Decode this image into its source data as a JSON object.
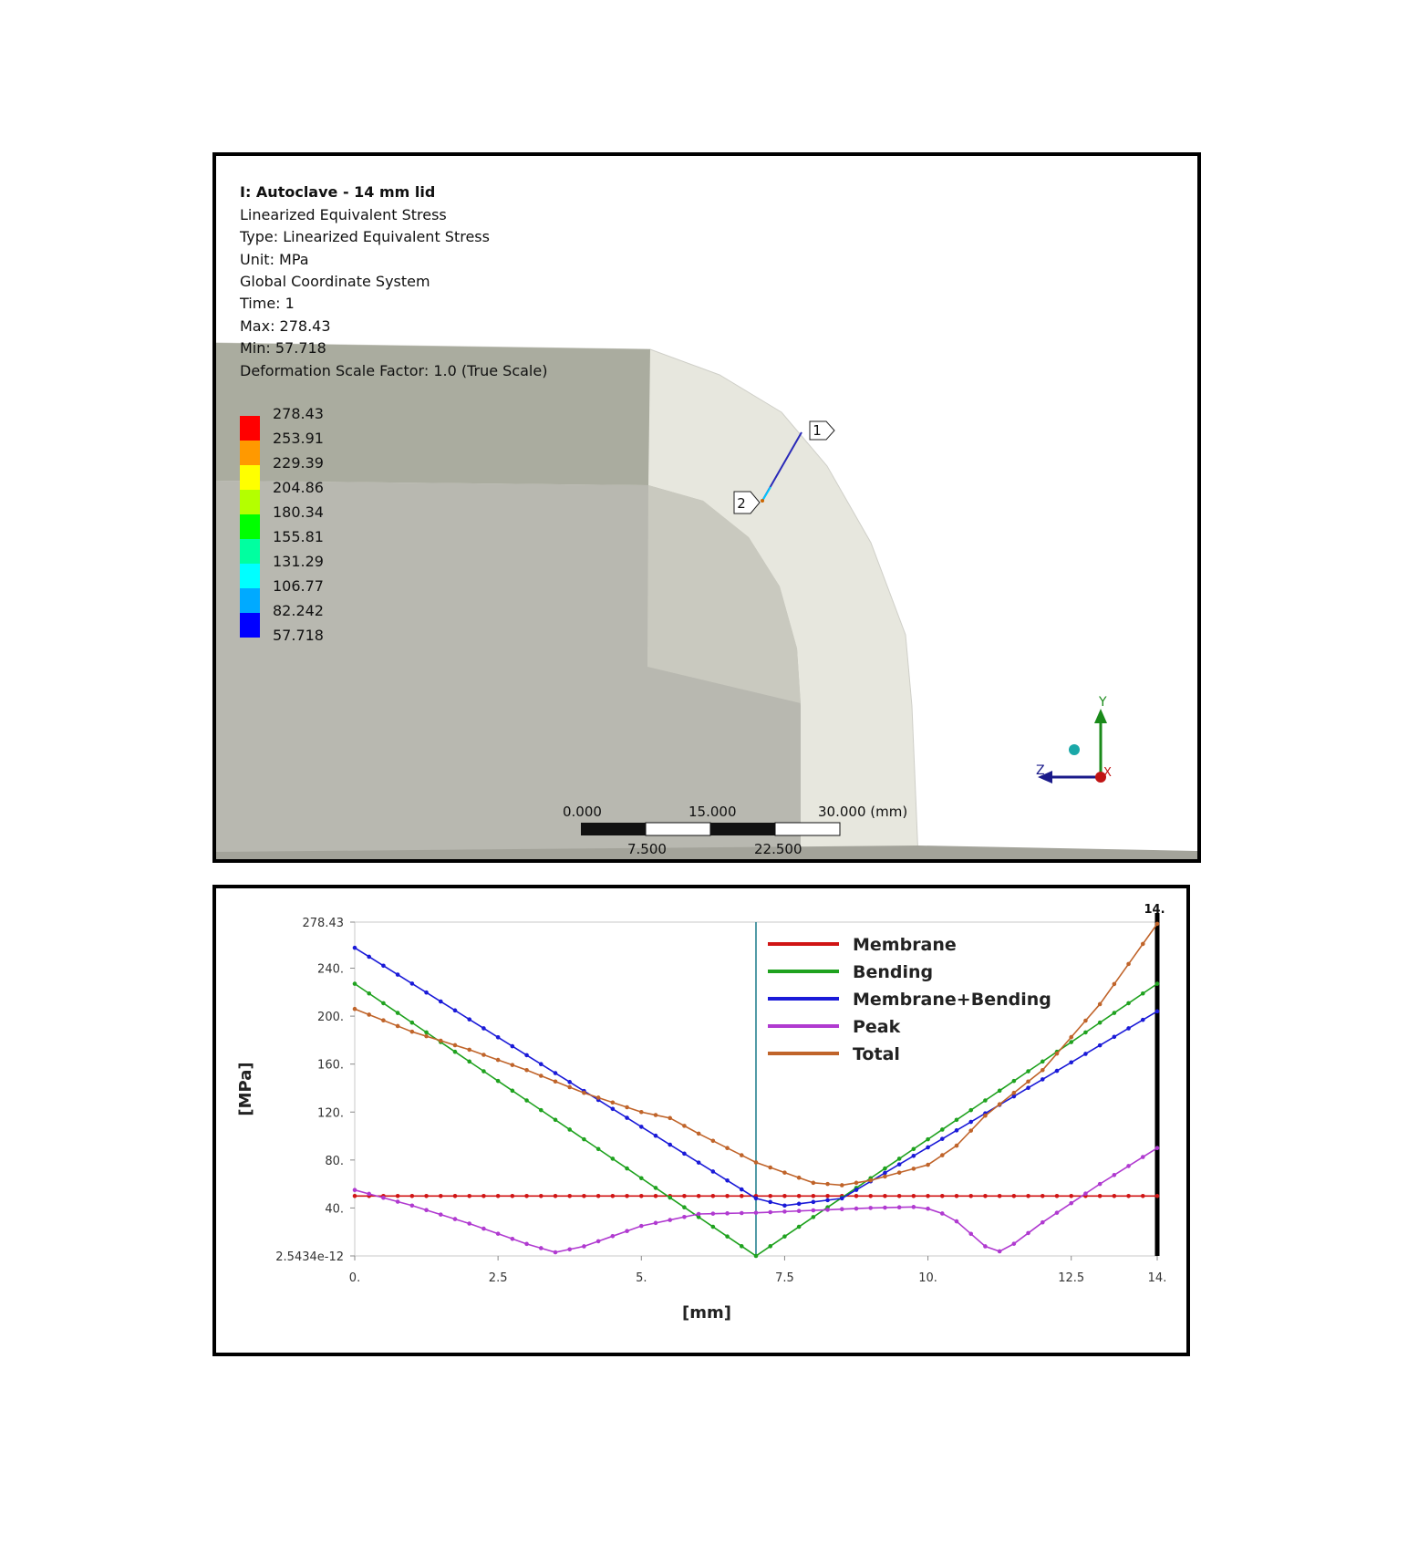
{
  "fea_view": {
    "title": "I: Autoclave - 14 mm lid",
    "lines": [
      "Linearized Equivalent Stress",
      "Type: Linearized Equivalent Stress",
      "Unit: MPa",
      "Global Coordinate System",
      "Time: 1",
      "Max: 278.43",
      "Min: 57.718",
      "Deformation Scale Factor: 1.0 (True Scale)"
    ],
    "legend": {
      "values": [
        "278.43",
        "253.91",
        "229.39",
        "204.86",
        "180.34",
        "155.81",
        "131.29",
        "106.77",
        "82.242",
        "57.718"
      ],
      "colors": [
        "#ff0000",
        "#ff9900",
        "#ffff00",
        "#b4ff00",
        "#00ff00",
        "#00ffa0",
        "#00ffff",
        "#00aaff",
        "#0000ff"
      ]
    },
    "path_markers": {
      "start": "1",
      "end": "2"
    },
    "scale_bar": {
      "top_labels": [
        "0.000",
        "15.000",
        "30.000 (mm)"
      ],
      "bottom_labels": [
        "7.500",
        "22.500"
      ]
    },
    "triad": {
      "y": "Y",
      "z": "Z",
      "x": "X"
    }
  },
  "chart_data": {
    "type": "line",
    "xlabel": "[mm]",
    "ylabel": "[MPa]",
    "xlim": [
      0,
      14
    ],
    "ylim": [
      2.5434e-12,
      278.43
    ],
    "x_ticks": [
      "0.",
      "2.5",
      "5.",
      "7.5",
      "10.",
      "12.5",
      "14."
    ],
    "y_ticks": [
      "278.43",
      "240.",
      "200.",
      "160.",
      "120.",
      "80.",
      "40.",
      "2.5434e-12"
    ],
    "marker_label": "14.",
    "cursor_x": 7.0,
    "grid": false,
    "legend_position": "top-center",
    "series": [
      {
        "name": "Membrane",
        "color": "#d01414",
        "x": [
          0,
          14
        ],
        "y": [
          50,
          50
        ]
      },
      {
        "name": "Bending",
        "color": "#1fa21f",
        "x": [
          0,
          7,
          14
        ],
        "y": [
          227,
          0,
          227
        ]
      },
      {
        "name": "Membrane+Bending",
        "color": "#1a1ad8",
        "x": [
          0,
          7,
          7.5,
          8.5,
          14
        ],
        "y": [
          257,
          48,
          42,
          48,
          204
        ]
      },
      {
        "name": "Peak",
        "color": "#b03ad0",
        "x": [
          0,
          1,
          2,
          3,
          3.5,
          4,
          5,
          6,
          7,
          8,
          9,
          9.9,
          10.4,
          11,
          11.3,
          12,
          13,
          14
        ],
        "y": [
          55,
          42,
          27,
          10,
          3,
          8,
          25,
          35,
          36,
          38,
          40,
          41,
          33,
          8,
          3,
          28,
          60,
          90
        ]
      },
      {
        "name": "Total",
        "color": "#c0642a",
        "x": [
          0,
          1,
          2,
          3,
          4,
          5,
          5.5,
          6,
          7,
          8,
          8.5,
          9,
          10,
          10.5,
          11,
          12,
          13,
          14
        ],
        "y": [
          206,
          187,
          172,
          155,
          136,
          120,
          115,
          102,
          78,
          61,
          59,
          63,
          76,
          92,
          117,
          155,
          210,
          277
        ]
      }
    ]
  }
}
